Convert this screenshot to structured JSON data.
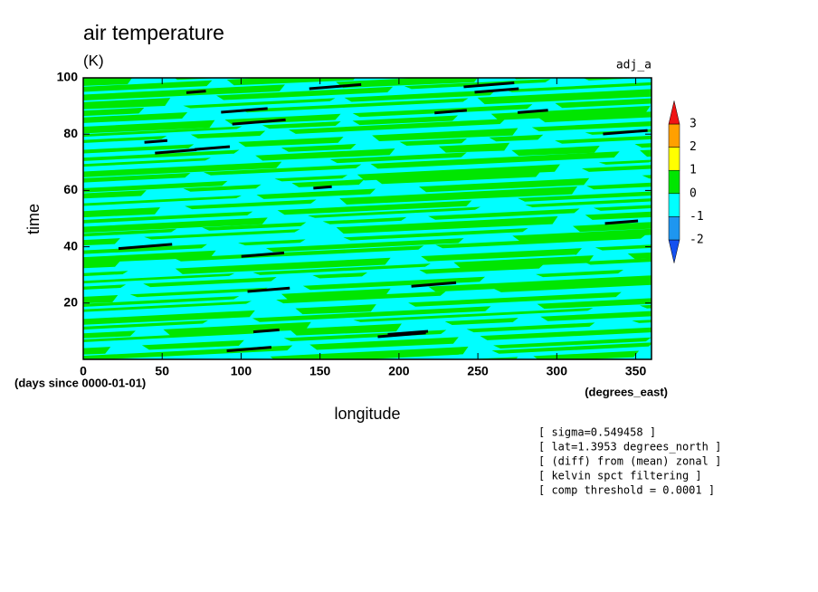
{
  "chart_data": {
    "type": "contour",
    "title": "air temperature",
    "subtitle": "(K)",
    "label_right": "adj_a",
    "x_label": "longitude",
    "y_label": "time",
    "x_units": "(degrees_east)",
    "y_units": "(days since 0000-01-01)",
    "xlim": [
      0,
      360
    ],
    "xticks": [
      0,
      50,
      100,
      150,
      200,
      250,
      300,
      350
    ],
    "ylim": [
      0,
      100
    ],
    "yticks": [
      20,
      40,
      60,
      80,
      100
    ],
    "levels": [
      -2,
      -1,
      0,
      1,
      2,
      3
    ],
    "colors": [
      "#1450f0",
      "#1e96f0",
      "#00ffff",
      "#00e600",
      "#ffff00",
      "#ffa000",
      "#f01414"
    ],
    "notes": [
      "[ sigma=0.549458 ]",
      "[ lat=1.3953 degrees_north ]",
      "[ (diff) from (mean) zonal ]",
      "[ kelvin spct filtering ]",
      "[ comp threshold = 0.0001 ]"
    ]
  }
}
